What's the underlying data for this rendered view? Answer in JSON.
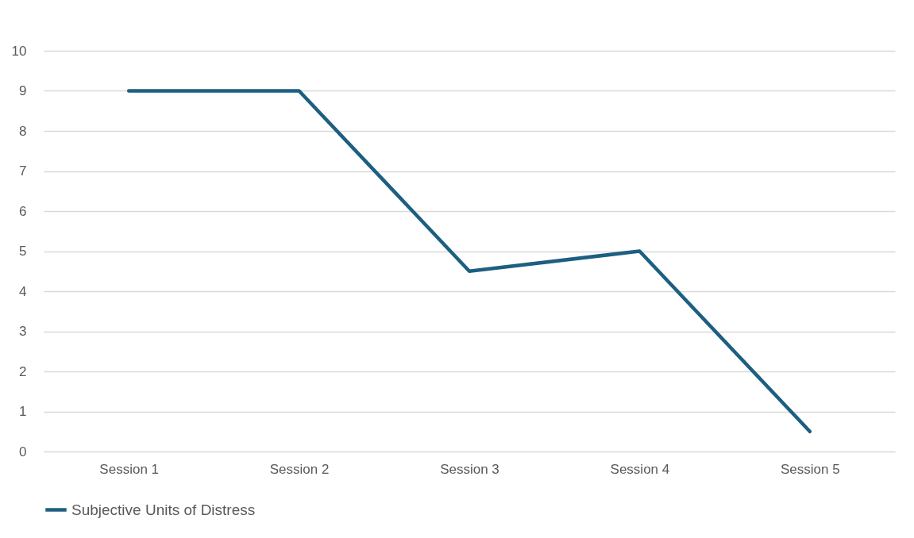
{
  "chart_data": {
    "type": "line",
    "categories": [
      "Session 1",
      "Session 2",
      "Session 3",
      "Session 4",
      "Session 5"
    ],
    "series": [
      {
        "name": "Subjective Units of Distress",
        "color": "#1d5f80",
        "values": [
          9,
          9,
          4.5,
          5,
          0.5
        ]
      }
    ],
    "ylim": [
      0,
      10
    ],
    "yticks": [
      0,
      1,
      2,
      3,
      4,
      5,
      6,
      7,
      8,
      9,
      10
    ],
    "grid": "y",
    "legend": "bottom"
  }
}
